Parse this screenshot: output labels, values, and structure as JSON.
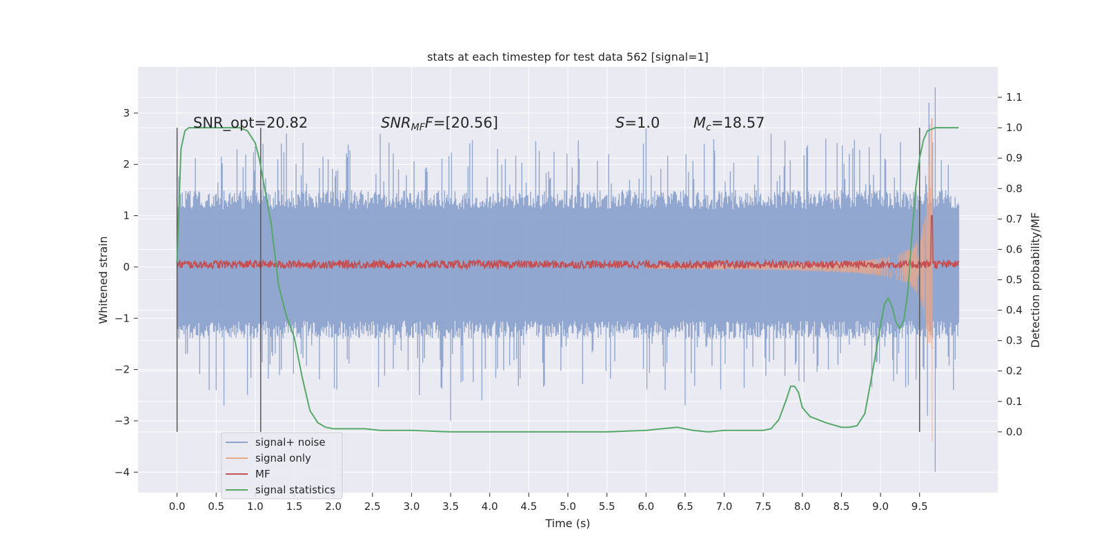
{
  "chart_data": {
    "type": "line",
    "title": "stats at each timestep for test data 562 [signal=1]",
    "xlabel": "Time (s)",
    "ylabel": "Whitened strain",
    "y2label": "Detection probability/MF",
    "xlim": [
      -0.5,
      10.5
    ],
    "ylim": [
      -4.4,
      3.9
    ],
    "y2lim": [
      -0.2,
      1.2
    ],
    "x_ticks": [
      0.0,
      0.5,
      1.0,
      1.5,
      2.0,
      2.5,
      3.0,
      3.5,
      4.0,
      4.5,
      5.0,
      5.5,
      6.0,
      6.5,
      7.0,
      7.5,
      8.0,
      8.5,
      9.0,
      9.5
    ],
    "x_tick_labels": [
      "0.0",
      "0.5",
      "1.0",
      "1.5",
      "2.0",
      "2.5",
      "3.0",
      "3.5",
      "4.0",
      "4.5",
      "5.0",
      "5.5",
      "6.0",
      "6.5",
      "7.0",
      "7.5",
      "8.0",
      "8.5",
      "9.0",
      "9.5"
    ],
    "y_ticks": [
      3,
      2,
      1,
      0,
      -1,
      -2,
      -3,
      -4
    ],
    "y_tick_labels": [
      "3",
      "2",
      "1",
      "0",
      "−1",
      "−2",
      "−3",
      "−4"
    ],
    "y2_ticks": [
      1.1,
      1.0,
      0.9,
      0.8,
      0.7,
      0.6,
      0.5,
      0.4,
      0.3,
      0.2,
      0.1,
      0.0
    ],
    "y2_tick_labels": [
      "1.1",
      "1.0",
      "0.9",
      "0.8",
      "0.7",
      "0.6",
      "0.5",
      "0.4",
      "0.3",
      "0.2",
      "0.1",
      "0.0"
    ],
    "grid": true,
    "legend_position": "bottom-left",
    "annotations": {
      "snr_opt": "SNR_opt=20.82",
      "snr_mf_base": "SNR",
      "snr_mf_sub": "MF",
      "snr_mf_value": "=[20.56]",
      "s_label": "S",
      "s_value": "=1.0",
      "mc_base": "M",
      "mc_sub": "c",
      "mc_value": "=18.57"
    },
    "vertical_markers_x": [
      0.0,
      1.07,
      9.5
    ],
    "vertical_marker_y2_range": [
      -0.0,
      1.0
    ],
    "series": [
      {
        "name": "signal+ noise",
        "color": "#8da3cc",
        "role": "noise",
        "x_range": [
          0.0,
          10.0
        ],
        "typical_band": [
          -1.4,
          1.5
        ],
        "extremes": [
          [
            0.5,
            -2.4
          ],
          [
            0.6,
            -2.7
          ],
          [
            0.9,
            -2.5
          ],
          [
            1.1,
            2.4
          ],
          [
            1.4,
            2.6
          ],
          [
            2.6,
            2.6
          ],
          [
            3.1,
            -2.5
          ],
          [
            3.5,
            -3.0
          ],
          [
            3.9,
            -2.6
          ],
          [
            4.7,
            -2.3
          ],
          [
            6.0,
            2.7
          ],
          [
            6.5,
            -2.7
          ],
          [
            7.6,
            2.6
          ],
          [
            8.3,
            2.5
          ],
          [
            9.0,
            2.6
          ],
          [
            9.6,
            -2.9
          ],
          [
            9.7,
            3.5
          ],
          [
            9.7,
            -4.0
          ],
          [
            9.62,
            3.2
          ]
        ]
      },
      {
        "name": "signal only",
        "color": "#e8a88c",
        "role": "chirp",
        "x_range": [
          6.0,
          9.7
        ],
        "peak": [
          9.66,
          2.9
        ],
        "trough": [
          9.66,
          -3.4
        ]
      },
      {
        "name": "MF",
        "color": "#c44e52",
        "role": "mf",
        "x_range": [
          0.0,
          10.0
        ],
        "baseline": 0.05,
        "spike": [
          9.66,
          1.0
        ]
      },
      {
        "name": "signal statistics",
        "color": "#55a868",
        "axis": "right",
        "x": [
          0.0,
          0.05,
          0.1,
          0.15,
          0.2,
          0.3,
          0.4,
          0.5,
          0.6,
          0.7,
          0.8,
          0.9,
          0.95,
          1.0,
          1.05,
          1.1,
          1.2,
          1.3,
          1.4,
          1.5,
          1.6,
          1.7,
          1.8,
          1.9,
          2.0,
          2.2,
          2.4,
          2.6,
          3.0,
          3.5,
          4.0,
          4.5,
          5.0,
          5.5,
          6.0,
          6.2,
          6.4,
          6.6,
          6.8,
          7.0,
          7.5,
          7.6,
          7.7,
          7.8,
          7.85,
          7.9,
          7.95,
          8.0,
          8.1,
          8.2,
          8.3,
          8.5,
          8.6,
          8.7,
          8.8,
          8.9,
          9.0,
          9.05,
          9.1,
          9.15,
          9.2,
          9.25,
          9.3,
          9.35,
          9.4,
          9.45,
          9.5,
          9.55,
          9.6,
          9.7,
          9.8,
          9.9,
          10.0
        ],
        "y": [
          0.56,
          0.93,
          0.99,
          1.0,
          1.0,
          1.0,
          1.0,
          1.0,
          1.0,
          1.0,
          1.0,
          0.99,
          0.97,
          0.95,
          0.9,
          0.83,
          0.69,
          0.48,
          0.38,
          0.31,
          0.18,
          0.07,
          0.03,
          0.015,
          0.01,
          0.01,
          0.01,
          0.005,
          0.005,
          0.0,
          0.0,
          0.0,
          0.0,
          0.0,
          0.005,
          0.01,
          0.015,
          0.005,
          0.0,
          0.005,
          0.005,
          0.01,
          0.04,
          0.11,
          0.15,
          0.15,
          0.13,
          0.08,
          0.05,
          0.04,
          0.03,
          0.015,
          0.015,
          0.02,
          0.06,
          0.2,
          0.35,
          0.42,
          0.44,
          0.41,
          0.36,
          0.34,
          0.37,
          0.46,
          0.64,
          0.8,
          0.9,
          0.96,
          0.99,
          1.0,
          1.0,
          1.0,
          1.0
        ]
      }
    ]
  }
}
